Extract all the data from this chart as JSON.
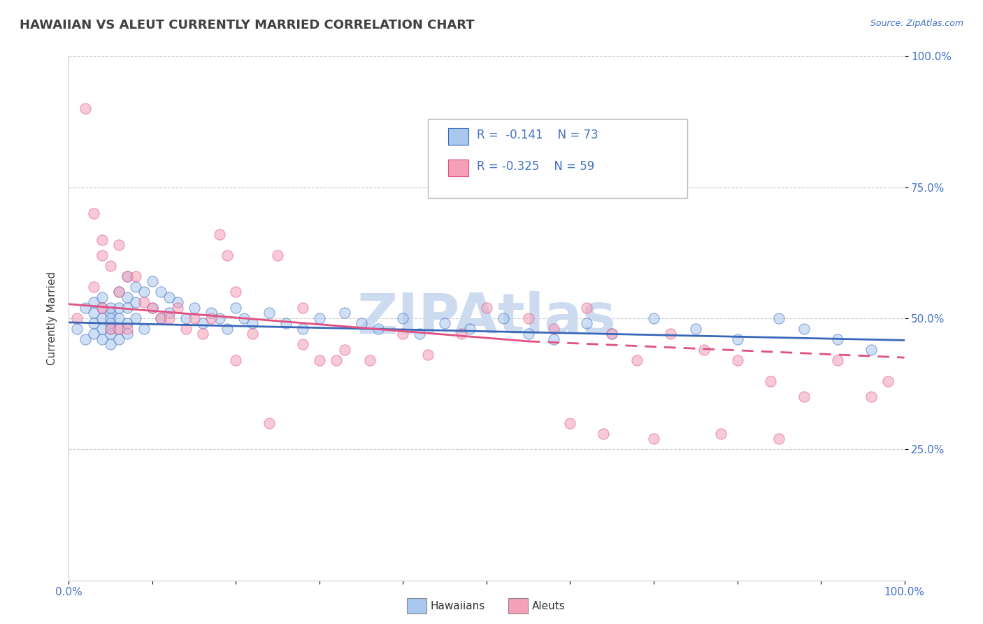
{
  "title": "HAWAIIAN VS ALEUT CURRENTLY MARRIED CORRELATION CHART",
  "source": "Source: ZipAtlas.com",
  "ylabel": "Currently Married",
  "legend_label_hawaiians": "Hawaiians",
  "legend_label_aleuts": "Aleuts",
  "hawaiian_R": "R =  -0.141",
  "hawaiian_N": "N = 73",
  "aleut_R": "R = -0.325",
  "aleut_N": "N = 59",
  "hawaiian_color": "#a8c8f0",
  "aleut_color": "#f4a0b8",
  "hawaiian_line_color": "#3a68b8",
  "aleut_line_color": "#e05080",
  "watermark": "ZIPAtlas",
  "xlim": [
    0.0,
    1.0
  ],
  "ylim": [
    0.0,
    1.0
  ],
  "yticks": [
    0.25,
    0.5,
    0.75,
    1.0
  ],
  "ytick_labels": [
    "25.0%",
    "50.0%",
    "75.0%",
    "100.0%"
  ],
  "hawaiian_scatter_x": [
    0.01,
    0.02,
    0.02,
    0.03,
    0.03,
    0.03,
    0.03,
    0.04,
    0.04,
    0.04,
    0.04,
    0.04,
    0.05,
    0.05,
    0.05,
    0.05,
    0.05,
    0.05,
    0.05,
    0.06,
    0.06,
    0.06,
    0.06,
    0.06,
    0.07,
    0.07,
    0.07,
    0.07,
    0.07,
    0.08,
    0.08,
    0.08,
    0.09,
    0.09,
    0.1,
    0.1,
    0.11,
    0.11,
    0.12,
    0.12,
    0.13,
    0.14,
    0.15,
    0.16,
    0.17,
    0.18,
    0.19,
    0.2,
    0.21,
    0.22,
    0.24,
    0.26,
    0.28,
    0.3,
    0.33,
    0.35,
    0.37,
    0.4,
    0.42,
    0.45,
    0.48,
    0.52,
    0.55,
    0.58,
    0.62,
    0.65,
    0.7,
    0.75,
    0.8,
    0.85,
    0.88,
    0.92,
    0.96
  ],
  "hawaiian_scatter_y": [
    0.48,
    0.52,
    0.46,
    0.51,
    0.49,
    0.47,
    0.53,
    0.5,
    0.52,
    0.48,
    0.46,
    0.54,
    0.51,
    0.49,
    0.47,
    0.52,
    0.5,
    0.48,
    0.45,
    0.55,
    0.52,
    0.5,
    0.48,
    0.46,
    0.58,
    0.54,
    0.52,
    0.49,
    0.47,
    0.56,
    0.53,
    0.5,
    0.55,
    0.48,
    0.57,
    0.52,
    0.55,
    0.5,
    0.54,
    0.51,
    0.53,
    0.5,
    0.52,
    0.49,
    0.51,
    0.5,
    0.48,
    0.52,
    0.5,
    0.49,
    0.51,
    0.49,
    0.48,
    0.5,
    0.51,
    0.49,
    0.48,
    0.5,
    0.47,
    0.49,
    0.48,
    0.5,
    0.47,
    0.46,
    0.49,
    0.47,
    0.5,
    0.48,
    0.46,
    0.5,
    0.48,
    0.46,
    0.44
  ],
  "aleut_scatter_x": [
    0.01,
    0.02,
    0.03,
    0.03,
    0.04,
    0.04,
    0.04,
    0.05,
    0.05,
    0.06,
    0.06,
    0.06,
    0.07,
    0.07,
    0.08,
    0.09,
    0.1,
    0.11,
    0.12,
    0.13,
    0.14,
    0.15,
    0.16,
    0.17,
    0.18,
    0.19,
    0.2,
    0.22,
    0.25,
    0.28,
    0.3,
    0.33,
    0.36,
    0.4,
    0.43,
    0.47,
    0.5,
    0.55,
    0.58,
    0.62,
    0.65,
    0.68,
    0.72,
    0.76,
    0.8,
    0.84,
    0.88,
    0.92,
    0.96,
    0.98,
    0.2,
    0.24,
    0.28,
    0.32,
    0.6,
    0.64,
    0.7,
    0.78,
    0.85
  ],
  "aleut_scatter_y": [
    0.5,
    0.9,
    0.56,
    0.7,
    0.65,
    0.62,
    0.52,
    0.6,
    0.48,
    0.64,
    0.55,
    0.48,
    0.58,
    0.48,
    0.58,
    0.53,
    0.52,
    0.5,
    0.5,
    0.52,
    0.48,
    0.5,
    0.47,
    0.5,
    0.66,
    0.62,
    0.55,
    0.47,
    0.62,
    0.52,
    0.42,
    0.44,
    0.42,
    0.47,
    0.43,
    0.47,
    0.52,
    0.5,
    0.48,
    0.52,
    0.47,
    0.42,
    0.47,
    0.44,
    0.42,
    0.38,
    0.35,
    0.42,
    0.35,
    0.38,
    0.42,
    0.3,
    0.45,
    0.42,
    0.3,
    0.28,
    0.27,
    0.28,
    0.27
  ],
  "hawaiian_trend_y_start": 0.492,
  "hawaiian_trend_y_end": 0.458,
  "aleut_trend_y_start": 0.527,
  "aleut_trend_solid_x_end": 0.55,
  "aleut_trend_y_at_solid_end": 0.456,
  "aleut_trend_y_end": 0.425,
  "background_color": "#ffffff",
  "grid_color": "#cccccc",
  "title_color": "#404040",
  "axis_label_color": "#4472c4",
  "watermark_color": "#c8d8f0",
  "title_fontsize": 13,
  "label_fontsize": 11,
  "tick_fontsize": 11,
  "scatter_size": 120,
  "scatter_alpha": 0.55,
  "trend_linewidth": 2.0
}
